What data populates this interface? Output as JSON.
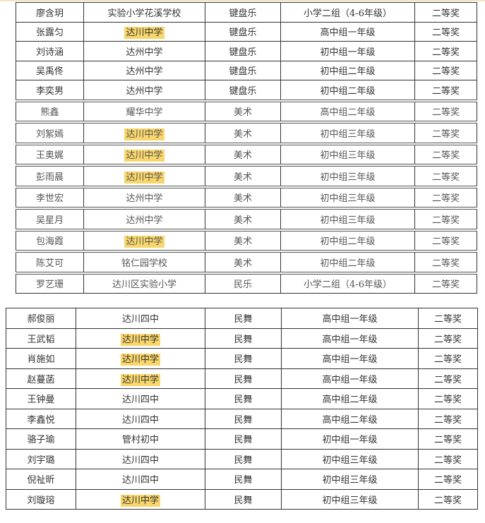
{
  "highlight_color": "#f8d66b",
  "tables": [
    {
      "rows": [
        {
          "name": "廖含玥",
          "school": "实验小学花溪学校",
          "category": "键盘乐",
          "group": "小学二组（4-6年级）",
          "award": "二等奖",
          "highlight": false
        },
        {
          "name": "张露匀",
          "school": "达川中学",
          "category": "键盘乐",
          "group": "高中组一年级",
          "award": "二等奖",
          "highlight": true
        },
        {
          "name": "刘诗涵",
          "school": "达州中学",
          "category": "键盘乐",
          "group": "初中组一年级",
          "award": "二等奖",
          "highlight": false
        },
        {
          "name": "吴禹佟",
          "school": "达州中学",
          "category": "键盘乐",
          "group": "初中组二年级",
          "award": "二等奖",
          "highlight": false
        },
        {
          "name": "李奕男",
          "school": "达州中学",
          "category": "键盘乐",
          "group": "初中组二年级",
          "award": "二等奖",
          "highlight": false
        },
        {
          "name": "熊鑫",
          "school": "耀华中学",
          "category": "美术",
          "group": "高中组二年级",
          "award": "二等奖",
          "highlight": false
        },
        {
          "name": "刘絮嫣",
          "school": "达川中学",
          "category": "美术",
          "group": "初中组三年级",
          "award": "二等奖",
          "highlight": true
        },
        {
          "name": "王奥娓",
          "school": "达川中学",
          "category": "美术",
          "group": "初中组三年级",
          "award": "二等奖",
          "highlight": true
        },
        {
          "name": "彭雨晨",
          "school": "达川中学",
          "category": "美术",
          "group": "初中组三年级",
          "award": "二等奖",
          "highlight": true
        },
        {
          "name": "李世宏",
          "school": "达州中学",
          "category": "美术",
          "group": "初中组三年级",
          "award": "二等奖",
          "highlight": false
        },
        {
          "name": "吴星月",
          "school": "达州中学",
          "category": "美术",
          "group": "初中组三年级",
          "award": "二等奖",
          "highlight": false
        },
        {
          "name": "包海霞",
          "school": "达川中学",
          "category": "美术",
          "group": "初中组二年级",
          "award": "二等奖",
          "highlight": true
        },
        {
          "name": "陈艾可",
          "school": "铭仁园学校",
          "category": "美术",
          "group": "初中组二年级",
          "award": "二等奖",
          "highlight": false
        },
        {
          "name": "罗艺珊",
          "school": "达川区实验小学",
          "category": "民乐",
          "group": "小学二组（4-6年级）",
          "award": "二等奖",
          "highlight": false
        }
      ]
    },
    {
      "rows": [
        {
          "name": "郝俊丽",
          "school": "达川四中",
          "category": "民舞",
          "group": "高中组一年级",
          "award": "二等奖",
          "highlight": false
        },
        {
          "name": "王武韬",
          "school": "达川中学",
          "category": "民舞",
          "group": "高中组一年级",
          "award": "二等奖",
          "highlight": true
        },
        {
          "name": "肖施如",
          "school": "达川中学",
          "category": "民舞",
          "group": "高中组一年级",
          "award": "二等奖",
          "highlight": true
        },
        {
          "name": "赵蔓菡",
          "school": "达川中学",
          "category": "民舞",
          "group": "高中组一年级",
          "award": "二等奖",
          "highlight": true
        },
        {
          "name": "王钟曼",
          "school": "达川四中",
          "category": "民舞",
          "group": "高中组二年级",
          "award": "二等奖",
          "highlight": false
        },
        {
          "name": "李鑫悦",
          "school": "达川四中",
          "category": "民舞",
          "group": "高中组二年级",
          "award": "二等奖",
          "highlight": false
        },
        {
          "name": "骆子瑜",
          "school": "管村初中",
          "category": "民舞",
          "group": "初中组一年级",
          "award": "二等奖",
          "highlight": false
        },
        {
          "name": "刘宇璐",
          "school": "达川四中",
          "category": "民舞",
          "group": "初中组三年级",
          "award": "二等奖",
          "highlight": false
        },
        {
          "name": "倪祉昕",
          "school": "达川四中",
          "category": "民舞",
          "group": "初中组三年级",
          "award": "二等奖",
          "highlight": false
        },
        {
          "name": "刘璇瑢",
          "school": "达川中学",
          "category": "民舞",
          "group": "初中组三年级",
          "award": "二等奖",
          "highlight": true
        }
      ]
    }
  ]
}
